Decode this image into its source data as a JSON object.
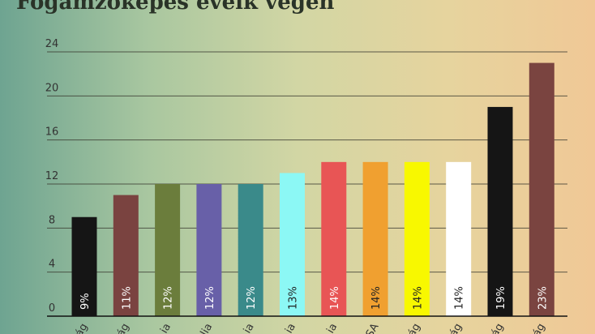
{
  "chart_data": {
    "type": "bar",
    "title": "Fogamzóképes éveik végén",
    "categories": [
      "ág",
      "ág",
      "ia",
      "lia",
      "ia",
      "ia",
      "ia",
      "SA",
      "ág",
      "ág",
      "ág",
      "ág"
    ],
    "values": [
      9,
      11,
      12,
      12,
      12,
      13,
      14,
      14,
      14,
      14,
      19,
      23
    ],
    "data_labels": [
      "9%",
      "11%",
      "12%",
      "12%",
      "12%",
      "13%",
      "14%",
      "14%",
      "14%",
      "14%",
      "19%",
      "23%"
    ],
    "colors": [
      "#151515",
      "#7a4340",
      "#6b7d3c",
      "#6860a8",
      "#3a8a8a",
      "#8cf8f5",
      "#e85555",
      "#f0a030",
      "#f8f800",
      "#ffffff",
      "#151515",
      "#7a4440"
    ],
    "label_colors": [
      "#ffffff",
      "#ffffff",
      "#ffffff",
      "#ffffff",
      "#ffffff",
      "#222222",
      "#ffffff",
      "#222222",
      "#222222",
      "#222222",
      "#ffffff",
      "#ffffff"
    ],
    "yticks": [
      0,
      4,
      8,
      12,
      16,
      20,
      24
    ],
    "ylim": [
      0,
      24
    ],
    "grid": true
  }
}
